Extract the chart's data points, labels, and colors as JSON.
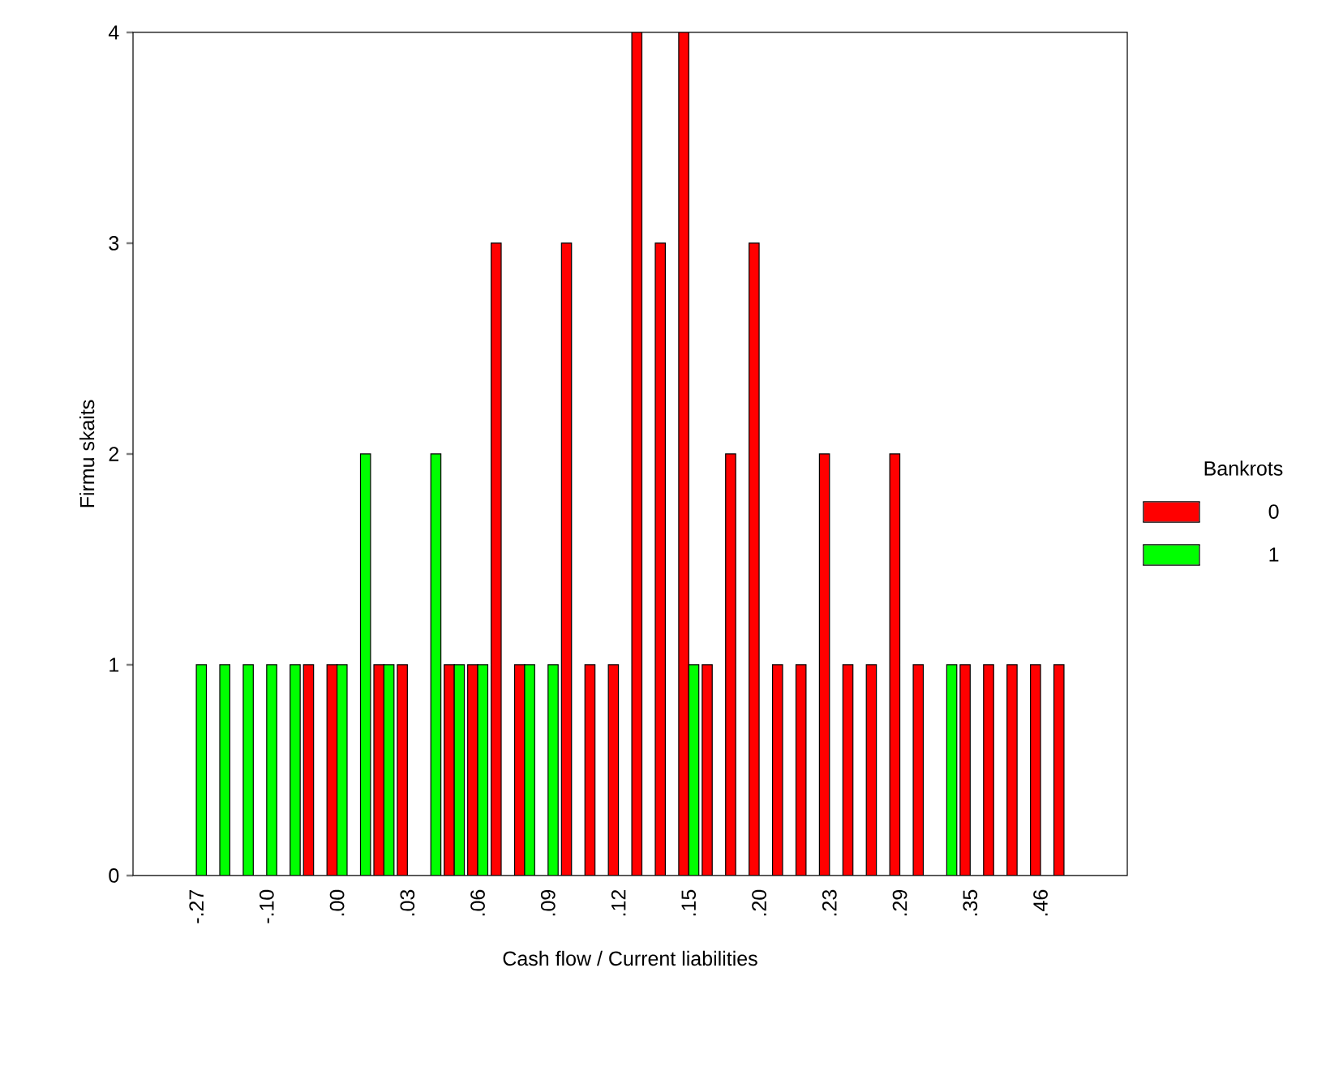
{
  "chart_data": {
    "type": "bar",
    "xlabel": "Cash flow / Current liabilities",
    "ylabel": "Firmu skaits",
    "legend_title": "Bankrots",
    "legend": "right",
    "grid": false,
    "categories": [
      "-.27",
      null,
      null,
      "-.10",
      null,
      null,
      ".00",
      null,
      null,
      ".03",
      null,
      null,
      ".06",
      null,
      null,
      ".09",
      null,
      null,
      ".12",
      null,
      null,
      ".15",
      null,
      null,
      ".20",
      null,
      null,
      ".23",
      null,
      null,
      ".29",
      null,
      null,
      ".35",
      null,
      null,
      ".46",
      null
    ],
    "series": [
      {
        "name": "0",
        "color": "#ff0000",
        "values": [
          null,
          null,
          null,
          null,
          null,
          1,
          1,
          null,
          1,
          1,
          null,
          1,
          1,
          3,
          1,
          null,
          3,
          1,
          1,
          4,
          3,
          4,
          1,
          2,
          3,
          1,
          1,
          2,
          1,
          1,
          2,
          1,
          null,
          1,
          1,
          1,
          1,
          1
        ]
      },
      {
        "name": "1",
        "color": "#00ff00",
        "values": [
          1,
          1,
          1,
          1,
          1,
          null,
          1,
          2,
          1,
          null,
          2,
          1,
          1,
          null,
          1,
          1,
          null,
          null,
          null,
          null,
          null,
          1,
          null,
          null,
          null,
          null,
          null,
          null,
          null,
          null,
          null,
          null,
          1,
          null,
          null,
          null,
          null,
          null
        ]
      }
    ],
    "ylim": [
      0,
      4
    ],
    "yticks": [
      0,
      1,
      2,
      3,
      4
    ]
  }
}
